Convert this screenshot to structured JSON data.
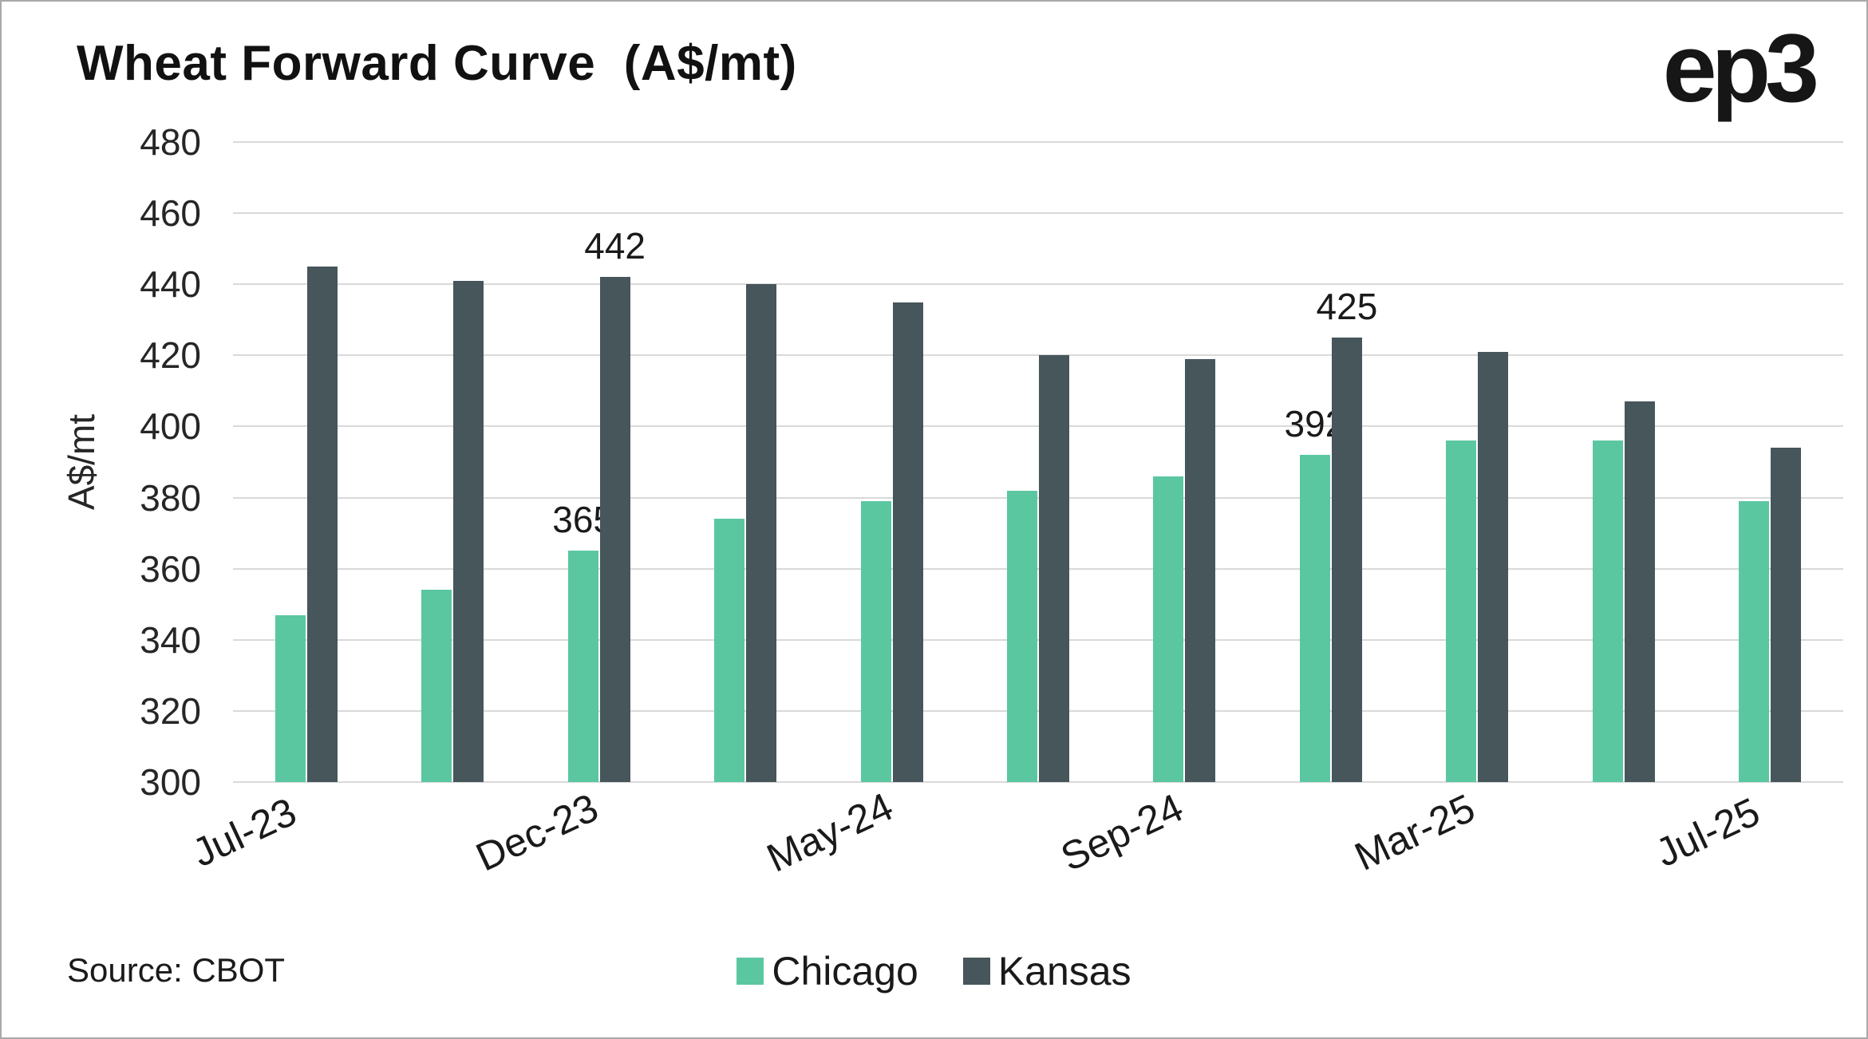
{
  "header": {
    "title": "Wheat Forward Curve  (A$/mt)",
    "logo_text": "ep3"
  },
  "footer": {
    "source": "Source: CBOT"
  },
  "chart_data": {
    "type": "bar",
    "title": "Wheat Forward Curve (A$/mt)",
    "xlabel": "",
    "ylabel": "A$/mt",
    "ylim": [
      300,
      480
    ],
    "ytick_step": 20,
    "grid": true,
    "legend_position": "bottom",
    "categories": [
      "Jul-23",
      "",
      "Dec-23",
      "",
      "May-24",
      "",
      "Sep-24",
      "",
      "Mar-25",
      "",
      "Jul-25"
    ],
    "visible_x_tick_labels": [
      "Jul-23",
      "Dec-23",
      "May-24",
      "Sep-24",
      "Mar-25",
      "Jul-25"
    ],
    "series": [
      {
        "name": "Chicago",
        "color": "#5bc7a1",
        "values": [
          347,
          354,
          365,
          374,
          379,
          382,
          386,
          392,
          396,
          396,
          379
        ]
      },
      {
        "name": "Kansas",
        "color": "#46565b",
        "values": [
          445,
          441,
          442,
          440,
          435,
          420,
          419,
          425,
          421,
          407,
          394
        ]
      }
    ],
    "data_labels": [
      {
        "category_index": 2,
        "series": "Chicago",
        "text": "365"
      },
      {
        "category_index": 2,
        "series": "Kansas",
        "text": "442"
      },
      {
        "category_index": 7,
        "series": "Chicago",
        "text": "392"
      },
      {
        "category_index": 7,
        "series": "Kansas",
        "text": "425"
      }
    ],
    "colors": {
      "gridline": "#d9d9d9",
      "text": "#1a1a1a"
    }
  }
}
